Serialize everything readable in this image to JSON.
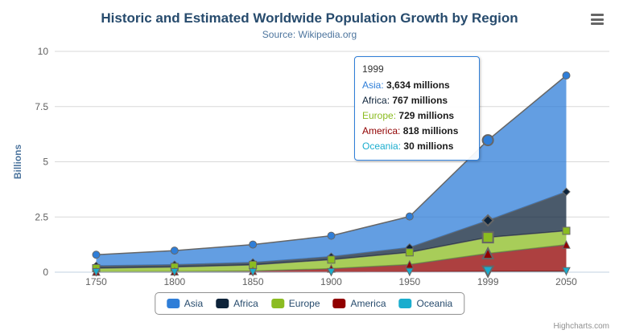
{
  "header": {
    "title": "Historic and Estimated Worldwide Population Growth by Region",
    "subtitle": "Source: Wikipedia.org"
  },
  "chart_data": {
    "type": "area",
    "stacking": "normal",
    "title": "Historic and Estimated Worldwide Population Growth by Region",
    "subtitle": "Source: Wikipedia.org",
    "categories": [
      "1750",
      "1800",
      "1850",
      "1900",
      "1950",
      "1999",
      "2050"
    ],
    "series": [
      {
        "name": "Asia",
        "color": "#2f7ed8",
        "marker": "circle",
        "values": [
          502,
          635,
          809,
          947,
          1402,
          3634,
          5268
        ]
      },
      {
        "name": "Africa",
        "color": "#0d233a",
        "marker": "diamond",
        "values": [
          106,
          107,
          111,
          133,
          221,
          767,
          1766
        ]
      },
      {
        "name": "Europe",
        "color": "#8bbc21",
        "marker": "square",
        "values": [
          163,
          203,
          276,
          408,
          547,
          729,
          628
        ]
      },
      {
        "name": "America",
        "color": "#910000",
        "marker": "triangle",
        "values": [
          18,
          31,
          54,
          156,
          339,
          818,
          1201
        ]
      },
      {
        "name": "Oceania",
        "color": "#1aadce",
        "marker": "triangle-down",
        "values": [
          2,
          2,
          2,
          6,
          13,
          30,
          46
        ]
      }
    ],
    "values_unit": "millions",
    "xlabel": "",
    "ylabel": "Billions",
    "yticks": [
      0,
      2.5,
      5,
      7.5,
      10
    ],
    "ytick_labels": [
      "0",
      "2.5",
      "5",
      "7.5",
      "10"
    ],
    "ylim": [
      0,
      10
    ],
    "grid": true,
    "legend_position": "bottom",
    "line_color": "#666666",
    "grid_color": "#d8d8d8",
    "axis_line_color": "#c0d0e0",
    "axis_label_color": "#606060",
    "axis_title_color": "#4d759e",
    "fill_opacity": 0.75,
    "hover_index": 5
  },
  "tooltip": {
    "header": "1999",
    "rows": [
      {
        "name": "Asia",
        "color": "#2f7ed8",
        "value": "3,634 millions"
      },
      {
        "name": "Africa",
        "color": "#0d233a",
        "value": "767 millions"
      },
      {
        "name": "Europe",
        "color": "#8bbc21",
        "value": "729 millions"
      },
      {
        "name": "America",
        "color": "#910000",
        "value": "818 millions"
      },
      {
        "name": "Oceania",
        "color": "#1aadce",
        "value": "30 millions"
      }
    ]
  },
  "credits": {
    "label": "Highcharts.com"
  }
}
